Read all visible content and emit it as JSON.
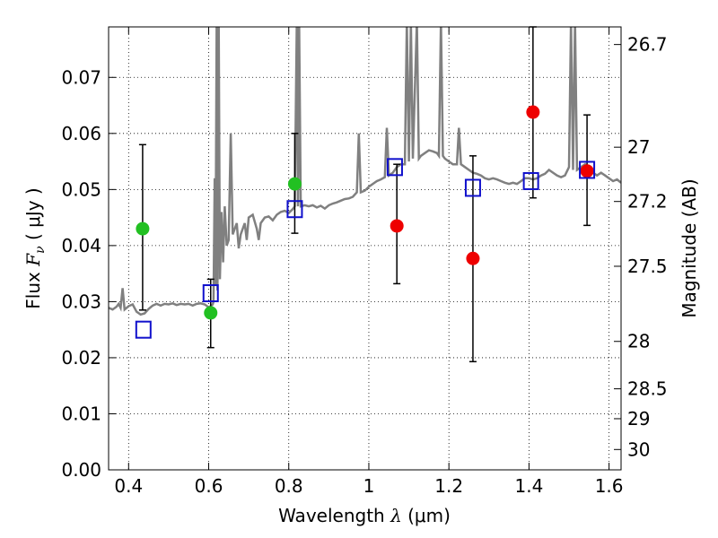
{
  "chart_data": {
    "type": "scatter",
    "xlabel": {
      "prefix": "Wavelength",
      "symbol": "λ",
      "unit": "(μm)"
    },
    "ylabel": {
      "prefix": "Flux",
      "symbol": "F",
      "subscript": "ν",
      "unit": "( μJy )"
    },
    "y2label": "Magnitude (AB)",
    "xlim": [
      0.35,
      1.63
    ],
    "ylim": [
      0.0,
      0.079
    ],
    "xticks": [
      {
        "value": 0.4,
        "label": "0.4"
      },
      {
        "value": 0.6,
        "label": "0.6"
      },
      {
        "value": 0.8,
        "label": "0.8"
      },
      {
        "value": 1.0,
        "label": "1"
      },
      {
        "value": 1.2,
        "label": "1.2"
      },
      {
        "value": 1.4,
        "label": "1.4"
      },
      {
        "value": 1.6,
        "label": "1.6"
      }
    ],
    "yticks": [
      {
        "value": 0.0,
        "label": "0.00"
      },
      {
        "value": 0.01,
        "label": "0.01"
      },
      {
        "value": 0.02,
        "label": "0.02"
      },
      {
        "value": 0.03,
        "label": "0.03"
      },
      {
        "value": 0.04,
        "label": "0.04"
      },
      {
        "value": 0.05,
        "label": "0.05"
      },
      {
        "value": 0.06,
        "label": "0.06"
      },
      {
        "value": 0.07,
        "label": "0.07"
      }
    ],
    "y2ticks": [
      {
        "mag": 26.7,
        "label": "26.7"
      },
      {
        "mag": 27.0,
        "label": "27"
      },
      {
        "mag": 27.2,
        "label": "27.2"
      },
      {
        "mag": 27.5,
        "label": "27.5"
      },
      {
        "mag": 28.0,
        "label": "28"
      },
      {
        "mag": 28.5,
        "label": "28.5"
      },
      {
        "mag": 29.0,
        "label": "29"
      },
      {
        "mag": 30.0,
        "label": "30"
      }
    ],
    "grid": true,
    "colors": {
      "spectrum": "#808080",
      "green": "#22c022",
      "red": "#ee0000",
      "model": "#1010cc",
      "errorbar": "#000000"
    },
    "spectrum": [
      [
        0.35,
        0.0289
      ],
      [
        0.36,
        0.0286
      ],
      [
        0.37,
        0.0291
      ],
      [
        0.375,
        0.0296
      ],
      [
        0.38,
        0.0289
      ],
      [
        0.385,
        0.0324
      ],
      [
        0.39,
        0.0286
      ],
      [
        0.4,
        0.0292
      ],
      [
        0.41,
        0.0295
      ],
      [
        0.42,
        0.0282
      ],
      [
        0.43,
        0.0277
      ],
      [
        0.44,
        0.0279
      ],
      [
        0.45,
        0.0287
      ],
      [
        0.46,
        0.0293
      ],
      [
        0.47,
        0.0296
      ],
      [
        0.48,
        0.0293
      ],
      [
        0.49,
        0.0296
      ],
      [
        0.5,
        0.0295
      ],
      [
        0.51,
        0.0297
      ],
      [
        0.52,
        0.0294
      ],
      [
        0.53,
        0.0296
      ],
      [
        0.54,
        0.0295
      ],
      [
        0.55,
        0.0296
      ],
      [
        0.56,
        0.0293
      ],
      [
        0.57,
        0.0296
      ],
      [
        0.58,
        0.0297
      ],
      [
        0.59,
        0.0295
      ],
      [
        0.6,
        0.029
      ],
      [
        0.605,
        0.0292
      ],
      [
        0.61,
        0.0295
      ],
      [
        0.612,
        0.03
      ],
      [
        0.615,
        0.052
      ],
      [
        0.617,
        0.033
      ],
      [
        0.62,
        0.08
      ],
      [
        0.622,
        0.032
      ],
      [
        0.625,
        0.08
      ],
      [
        0.628,
        0.034
      ],
      [
        0.632,
        0.046
      ],
      [
        0.636,
        0.037
      ],
      [
        0.64,
        0.047
      ],
      [
        0.645,
        0.04
      ],
      [
        0.65,
        0.041
      ],
      [
        0.655,
        0.06
      ],
      [
        0.66,
        0.042
      ],
      [
        0.67,
        0.044
      ],
      [
        0.675,
        0.0395
      ],
      [
        0.68,
        0.042
      ],
      [
        0.69,
        0.044
      ],
      [
        0.695,
        0.041
      ],
      [
        0.7,
        0.045
      ],
      [
        0.71,
        0.0455
      ],
      [
        0.72,
        0.043
      ],
      [
        0.725,
        0.041
      ],
      [
        0.73,
        0.044
      ],
      [
        0.74,
        0.045
      ],
      [
        0.75,
        0.0452
      ],
      [
        0.76,
        0.0445
      ],
      [
        0.77,
        0.0455
      ],
      [
        0.78,
        0.046
      ],
      [
        0.79,
        0.0462
      ],
      [
        0.8,
        0.0458
      ],
      [
        0.81,
        0.0465
      ],
      [
        0.815,
        0.047
      ],
      [
        0.82,
        0.08
      ],
      [
        0.823,
        0.047
      ],
      [
        0.826,
        0.08
      ],
      [
        0.83,
        0.047
      ],
      [
        0.84,
        0.0472
      ],
      [
        0.85,
        0.047
      ],
      [
        0.86,
        0.0472
      ],
      [
        0.87,
        0.0468
      ],
      [
        0.88,
        0.0471
      ],
      [
        0.89,
        0.0466
      ],
      [
        0.9,
        0.0472
      ],
      [
        0.91,
        0.0475
      ],
      [
        0.92,
        0.0477
      ],
      [
        0.93,
        0.048
      ],
      [
        0.94,
        0.0483
      ],
      [
        0.95,
        0.0484
      ],
      [
        0.96,
        0.0487
      ],
      [
        0.97,
        0.0495
      ],
      [
        0.975,
        0.06
      ],
      [
        0.98,
        0.0495
      ],
      [
        0.99,
        0.0498
      ],
      [
        1.0,
        0.0505
      ],
      [
        1.01,
        0.051
      ],
      [
        1.02,
        0.0515
      ],
      [
        1.03,
        0.0518
      ],
      [
        1.04,
        0.0522
      ],
      [
        1.045,
        0.061
      ],
      [
        1.05,
        0.0525
      ],
      [
        1.06,
        0.053
      ],
      [
        1.07,
        0.054
      ],
      [
        1.08,
        0.0545
      ],
      [
        1.09,
        0.0545
      ],
      [
        1.095,
        0.08
      ],
      [
        1.1,
        0.055
      ],
      [
        1.105,
        0.08
      ],
      [
        1.11,
        0.0555
      ],
      [
        1.12,
        0.08
      ],
      [
        1.125,
        0.0555
      ],
      [
        1.13,
        0.056
      ],
      [
        1.14,
        0.0565
      ],
      [
        1.15,
        0.057
      ],
      [
        1.16,
        0.0568
      ],
      [
        1.17,
        0.0565
      ],
      [
        1.175,
        0.056
      ],
      [
        1.18,
        0.08
      ],
      [
        1.185,
        0.056
      ],
      [
        1.19,
        0.0555
      ],
      [
        1.2,
        0.055
      ],
      [
        1.21,
        0.0545
      ],
      [
        1.22,
        0.0545
      ],
      [
        1.225,
        0.061
      ],
      [
        1.23,
        0.0545
      ],
      [
        1.24,
        0.054
      ],
      [
        1.25,
        0.0535
      ],
      [
        1.26,
        0.053
      ],
      [
        1.27,
        0.0528
      ],
      [
        1.28,
        0.0525
      ],
      [
        1.29,
        0.052
      ],
      [
        1.3,
        0.0518
      ],
      [
        1.31,
        0.052
      ],
      [
        1.32,
        0.0518
      ],
      [
        1.33,
        0.0515
      ],
      [
        1.34,
        0.0512
      ],
      [
        1.35,
        0.051
      ],
      [
        1.36,
        0.0512
      ],
      [
        1.37,
        0.051
      ],
      [
        1.38,
        0.0515
      ],
      [
        1.39,
        0.052
      ],
      [
        1.4,
        0.052
      ],
      [
        1.41,
        0.0518
      ],
      [
        1.42,
        0.052
      ],
      [
        1.43,
        0.0525
      ],
      [
        1.44,
        0.0528
      ],
      [
        1.45,
        0.0535
      ],
      [
        1.46,
        0.053
      ],
      [
        1.47,
        0.0525
      ],
      [
        1.48,
        0.0522
      ],
      [
        1.49,
        0.0525
      ],
      [
        1.5,
        0.054
      ],
      [
        1.505,
        0.08
      ],
      [
        1.51,
        0.0535
      ],
      [
        1.515,
        0.08
      ],
      [
        1.52,
        0.0535
      ],
      [
        1.53,
        0.054
      ],
      [
        1.54,
        0.0545
      ],
      [
        1.55,
        0.0535
      ],
      [
        1.56,
        0.053
      ],
      [
        1.57,
        0.0525
      ],
      [
        1.58,
        0.053
      ],
      [
        1.59,
        0.0525
      ],
      [
        1.6,
        0.052
      ],
      [
        1.61,
        0.0515
      ],
      [
        1.62,
        0.0518
      ],
      [
        1.63,
        0.0512
      ]
    ],
    "series": [
      {
        "marker": "circle",
        "color": "green",
        "points": [
          {
            "x": 0.435,
            "y": 0.043,
            "yerr": [
              0.0285,
              0.058
            ]
          },
          {
            "x": 0.605,
            "y": 0.028,
            "yerr": [
              0.0218,
              0.034
            ]
          },
          {
            "x": 0.815,
            "y": 0.051,
            "yerr": [
              0.0422,
              0.06
            ]
          }
        ]
      },
      {
        "marker": "circle",
        "color": "red",
        "points": [
          {
            "x": 1.07,
            "y": 0.0435,
            "yerr": [
              0.0332,
              0.0545
            ]
          },
          {
            "x": 1.26,
            "y": 0.0377,
            "yerr": [
              0.0193,
              0.056
            ]
          },
          {
            "x": 1.41,
            "y": 0.0638,
            "yerr": [
              0.0485,
              0.079
            ]
          },
          {
            "x": 1.545,
            "y": 0.0533,
            "yerr": [
              0.0436,
              0.0633
            ]
          }
        ]
      },
      {
        "marker": "square",
        "color": "model",
        "points": [
          {
            "x": 0.437,
            "y": 0.025
          },
          {
            "x": 0.605,
            "y": 0.0315
          },
          {
            "x": 0.815,
            "y": 0.0465
          },
          {
            "x": 1.065,
            "y": 0.054
          },
          {
            "x": 1.26,
            "y": 0.0503
          },
          {
            "x": 1.405,
            "y": 0.0515
          },
          {
            "x": 1.545,
            "y": 0.0535
          }
        ]
      }
    ]
  }
}
